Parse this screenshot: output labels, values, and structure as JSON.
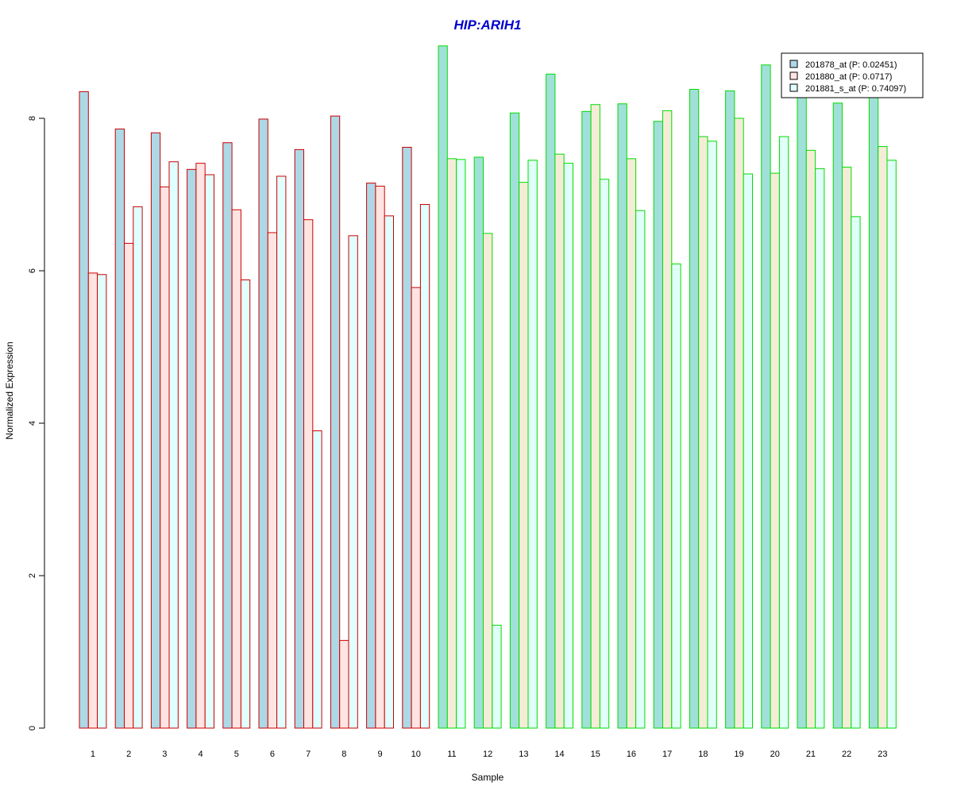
{
  "chart_data": {
    "type": "bar",
    "title": "HIP:ARIH1",
    "xlabel": "Sample",
    "ylabel": "Normalized Expression",
    "ylim": [
      0,
      9
    ],
    "yticks": [
      0,
      2,
      4,
      6,
      8
    ],
    "grid": false,
    "legend_position": "top-right",
    "categories": [
      "1",
      "2",
      "3",
      "4",
      "5",
      "6",
      "7",
      "8",
      "9",
      "10",
      "11",
      "12",
      "13",
      "14",
      "15",
      "16",
      "17",
      "18",
      "19",
      "20",
      "21",
      "22",
      "23"
    ],
    "groups": [
      {
        "name": "group-1",
        "samples": [
          1,
          2,
          3,
          4,
          5,
          6,
          7,
          8,
          9,
          10
        ],
        "border_color": "#cc0000",
        "fills": [
          "#add8e6",
          "#ffe4e1",
          "#e0ffff"
        ]
      },
      {
        "name": "group-2",
        "samples": [
          11,
          12,
          13,
          14,
          15,
          16,
          17,
          18,
          19,
          20,
          21,
          22,
          23
        ],
        "border_color": "#00dd00",
        "fills": [
          "#a0e0d8",
          "#f5ecd8",
          "#e0fff8"
        ]
      }
    ],
    "series": [
      {
        "name": "201878_at (P: 0.02451)",
        "legend_fill": "#add8e6",
        "values": [
          8.35,
          7.86,
          7.81,
          7.33,
          7.68,
          7.99,
          7.59,
          8.03,
          7.15,
          7.62,
          8.95,
          7.49,
          8.07,
          8.58,
          8.09,
          8.19,
          7.96,
          8.38,
          8.36,
          8.7,
          8.29,
          8.2,
          8.3
        ]
      },
      {
        "name": "201880_at (P: 0.0717)",
        "legend_fill": "#ffe4e1",
        "values": [
          5.97,
          6.36,
          7.1,
          7.41,
          6.8,
          6.5,
          6.67,
          1.15,
          7.11,
          5.78,
          7.47,
          6.49,
          7.16,
          7.53,
          8.18,
          7.47,
          8.1,
          7.76,
          8.0,
          7.28,
          7.58,
          7.36,
          7.63
        ]
      },
      {
        "name": "201881_s_at (P: 0.74097)",
        "legend_fill": "#e0ffff",
        "values": [
          5.95,
          6.84,
          7.43,
          7.26,
          5.88,
          7.24,
          3.9,
          6.46,
          6.72,
          6.87,
          7.46,
          1.35,
          7.45,
          7.41,
          7.2,
          6.79,
          6.09,
          7.7,
          7.27,
          7.76,
          7.34,
          6.71,
          7.45
        ]
      }
    ],
    "colors": {
      "title": "#0000cc"
    }
  }
}
